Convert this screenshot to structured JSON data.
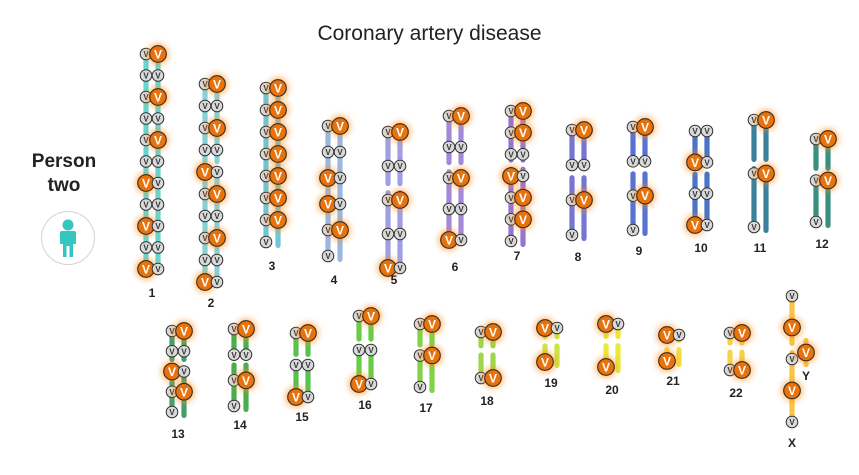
{
  "title": "Coronary artery disease",
  "person": {
    "line1": "Person",
    "line2": "two"
  },
  "variant_symbol": "V",
  "colors": {
    "risk_variant": "#e8730c",
    "neutral_variant": "#d9d9d9",
    "glow": "#ff8c1a"
  },
  "icons": {
    "person": "person-icon"
  },
  "chromosomes": [
    {
      "label": "1",
      "color": "#5fd3cc",
      "risk_variants": 6,
      "neutral_variants": 16
    },
    {
      "label": "2",
      "color": "#7fd0d6",
      "risk_variants": 6,
      "neutral_variants": 14
    },
    {
      "label": "3",
      "color": "#6cc1d6",
      "risk_variants": 7,
      "neutral_variants": 8
    },
    {
      "label": "4",
      "color": "#93b4e0",
      "risk_variants": 4,
      "neutral_variants": 7
    },
    {
      "label": "5",
      "color": "#9a9ae0",
      "risk_variants": 3,
      "neutral_variants": 7
    },
    {
      "label": "6",
      "color": "#9d83d8",
      "risk_variants": 3,
      "neutral_variants": 7
    },
    {
      "label": "7",
      "color": "#8c6fcf",
      "risk_variants": 5,
      "neutral_variants": 8
    },
    {
      "label": "8",
      "color": "#6e6fcf",
      "risk_variants": 2,
      "neutral_variants": 5
    },
    {
      "label": "9",
      "color": "#4d6bd0",
      "risk_variants": 2,
      "neutral_variants": 5
    },
    {
      "label": "10",
      "color": "#3f6cc2",
      "risk_variants": 2,
      "neutral_variants": 6
    },
    {
      "label": "11",
      "color": "#2f7a96",
      "risk_variants": 2,
      "neutral_variants": 3
    },
    {
      "label": "12",
      "color": "#2e8a7a",
      "risk_variants": 2,
      "neutral_variants": 3
    },
    {
      "label": "13",
      "color": "#3a9a62",
      "risk_variants": 3,
      "neutral_variants": 6
    },
    {
      "label": "14",
      "color": "#3faa44",
      "risk_variants": 2,
      "neutral_variants": 5
    },
    {
      "label": "15",
      "color": "#4fbf48",
      "risk_variants": 2,
      "neutral_variants": 4
    },
    {
      "label": "16",
      "color": "#62c93a",
      "risk_variants": 2,
      "neutral_variants": 4
    },
    {
      "label": "17",
      "color": "#7ad03c",
      "risk_variants": 2,
      "neutral_variants": 3
    },
    {
      "label": "18",
      "color": "#9ad440",
      "risk_variants": 2,
      "neutral_variants": 2
    },
    {
      "label": "19",
      "color": "#c9e33a",
      "risk_variants": 2,
      "neutral_variants": 1
    },
    {
      "label": "20",
      "color": "#e8e82f",
      "risk_variants": 2,
      "neutral_variants": 1
    },
    {
      "label": "21",
      "color": "#f2e03a",
      "risk_variants": 2,
      "neutral_variants": 1
    },
    {
      "label": "22",
      "color": "#f4d23a",
      "risk_variants": 2,
      "neutral_variants": 2
    },
    {
      "label": "X",
      "color": "#f5c23a",
      "risk_variants": 2,
      "neutral_variants": 3
    },
    {
      "label": "Y",
      "color": "#f5c23a",
      "risk_variants": 1,
      "neutral_variants": 0
    }
  ]
}
